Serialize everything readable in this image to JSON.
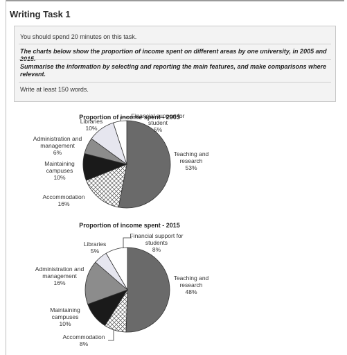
{
  "task": {
    "title": "Writing Task 1",
    "line1": "You should spend 20 minutes on this task.",
    "line2": "The charts below show the proportion of income spent on different areas by one university, in 2005 and 2015.",
    "line3a": "Summarise the information by selecting and reporting the main features, and make comparisons where",
    "line3b": "relevant.",
    "line4": "Write at least 150 words."
  },
  "chart_data": [
    {
      "type": "pie",
      "title": "Proportion of income spent - 2005",
      "legend": "none",
      "slices": [
        {
          "label": [
            "Teaching and",
            "research"
          ],
          "value": 53,
          "value_label": "53%",
          "fill": "#6a6a6a"
        },
        {
          "label": [
            "Accommodation"
          ],
          "value": 16,
          "value_label": "16%",
          "fill": "pattern-crosshatch"
        },
        {
          "label": [
            "Maintaining",
            "campuses"
          ],
          "value": 10,
          "value_label": "10%",
          "fill": "#1a1a1a"
        },
        {
          "label": [
            "Administration and",
            "management"
          ],
          "value": 6,
          "value_label": "6%",
          "fill": "#8c8c8c"
        },
        {
          "label": [
            "Libraries"
          ],
          "value": 10,
          "value_label": "10%",
          "fill": "#e6e6ef"
        },
        {
          "label": [
            "Financial support for",
            "student"
          ],
          "value": 5,
          "value_label": "5%",
          "fill": "#ffffff"
        }
      ]
    },
    {
      "type": "pie",
      "title": "Proportion of income spent - 2015",
      "legend": "none",
      "slices": [
        {
          "label": [
            "Teaching and",
            "research"
          ],
          "value": 48,
          "value_label": "48%",
          "fill": "#6a6a6a"
        },
        {
          "label": [
            "Accommodation"
          ],
          "value": 8,
          "value_label": "8%",
          "fill": "pattern-crosshatch"
        },
        {
          "label": [
            "Maintaining",
            "campuses"
          ],
          "value": 10,
          "value_label": "10%",
          "fill": "#1a1a1a"
        },
        {
          "label": [
            "Administration and",
            "management"
          ],
          "value": 16,
          "value_label": "16%",
          "fill": "#8c8c8c"
        },
        {
          "label": [
            "Libraries"
          ],
          "value": 5,
          "value_label": "5%",
          "fill": "#e6e6ef"
        },
        {
          "label": [
            "Financial support for",
            "students"
          ],
          "value": 8,
          "value_label": "8%",
          "fill": "#ffffff"
        }
      ]
    }
  ]
}
